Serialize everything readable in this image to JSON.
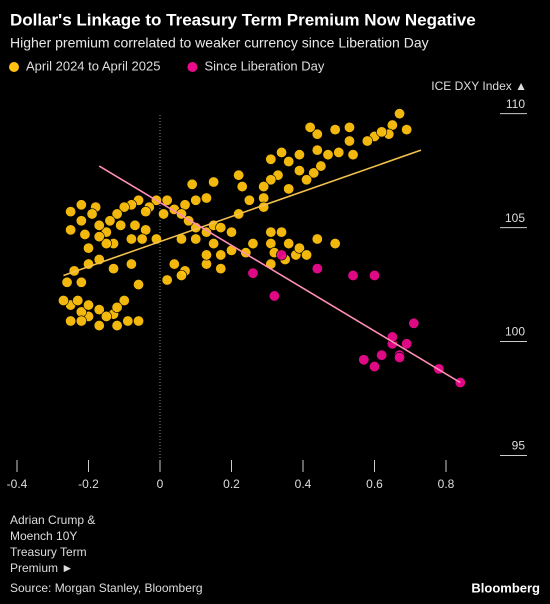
{
  "chart_data": {
    "type": "scatter",
    "title": "Dollar's Linkage to Treasury Term Premium Now Negative",
    "subtitle": "Higher premium correlated to weaker currency since Liberation Day",
    "y_axis_label": "ICE DXY Index ▲",
    "x_axis_label": [
      "Adrian Crump &",
      "Moench 10Y",
      "Treasury Term",
      "Premium ►"
    ],
    "source": "Source: Morgan Stanley, Bloomberg",
    "brand": "Bloomberg",
    "xlim": [
      -0.4,
      1.0
    ],
    "ylim": [
      94.8,
      110.6
    ],
    "xticks": [
      -0.4,
      -0.2,
      0,
      0.2,
      0.4,
      0.6,
      0.8
    ],
    "yticks": [
      95,
      100,
      105,
      110
    ],
    "series": [
      {
        "name": "April 2024 to April 2025",
        "color": "#ffc20e",
        "x": [
          0.67,
          0.65,
          0.69,
          0.64,
          0.6,
          0.62,
          0.53,
          0.49,
          0.44,
          0.42,
          0.44,
          0.47,
          0.5,
          0.54,
          0.53,
          0.58,
          0.39,
          0.36,
          0.34,
          0.31,
          0.33,
          0.39,
          0.43,
          0.45,
          0.41,
          0.36,
          0.31,
          0.29,
          0.29,
          0.29,
          0.23,
          0.25,
          0.22,
          0.15,
          0.09,
          0.1,
          0.13,
          0.07,
          0.04,
          0.02,
          0.06,
          0.01,
          -0.01,
          -0.03,
          -0.04,
          -0.06,
          -0.08,
          -0.1,
          -0.12,
          -0.14,
          -0.11,
          -0.07,
          -0.04,
          -0.01,
          -0.05,
          -0.08,
          -0.13,
          -0.15,
          -0.15,
          -0.17,
          -0.18,
          -0.22,
          -0.25,
          -0.22,
          -0.19,
          -0.25,
          -0.21,
          -0.17,
          -0.2,
          -0.17,
          -0.2,
          -0.24,
          -0.26,
          -0.22,
          -0.13,
          -0.08,
          -0.06,
          -0.1,
          -0.13,
          -0.17,
          -0.2,
          -0.22,
          -0.25,
          -0.27,
          -0.25,
          -0.22,
          -0.17,
          -0.12,
          -0.09,
          -0.06,
          -0.23,
          -0.2,
          -0.15,
          -0.12,
          0.02,
          0.04,
          0.07,
          0.06,
          0.13,
          0.13,
          0.15,
          0.17,
          0.2,
          0.24,
          0.26,
          0.31,
          0.32,
          0.36,
          0.38,
          0.39,
          0.41,
          0.44,
          0.49,
          0.35,
          0.31,
          0.17,
          0.06,
          0.1,
          0.13,
          0.1,
          0.08,
          0.15,
          0.17,
          0.2,
          0.22,
          0.31,
          0.34
        ],
        "values": [
          110.0,
          109.5,
          109.3,
          109.1,
          109.0,
          109.2,
          109.4,
          109.3,
          109.1,
          109.4,
          108.4,
          108.2,
          108.3,
          108.2,
          108.8,
          108.8,
          108.2,
          107.9,
          108.3,
          108.0,
          107.3,
          107.5,
          107.4,
          107.7,
          107.1,
          106.7,
          107.1,
          106.8,
          106.3,
          105.9,
          106.8,
          106.2,
          107.3,
          107.0,
          106.9,
          106.2,
          106.3,
          106.0,
          105.8,
          106.2,
          105.6,
          105.6,
          106.2,
          105.9,
          105.7,
          106.2,
          106.0,
          105.9,
          105.6,
          105.3,
          105.1,
          105.1,
          104.9,
          104.5,
          104.5,
          104.5,
          104.3,
          104.3,
          104.8,
          105.1,
          105.9,
          106.0,
          105.7,
          105.3,
          105.6,
          104.9,
          104.7,
          104.6,
          104.1,
          103.6,
          103.4,
          103.1,
          102.6,
          102.6,
          103.2,
          103.4,
          102.5,
          101.8,
          101.2,
          101.4,
          101.1,
          101.3,
          101.6,
          101.8,
          100.9,
          100.9,
          100.7,
          100.7,
          100.9,
          100.9,
          101.8,
          101.6,
          101.1,
          101.5,
          102.7,
          103.4,
          103.1,
          102.9,
          103.4,
          103.8,
          104.3,
          103.8,
          104.0,
          103.9,
          104.3,
          104.3,
          103.9,
          104.3,
          103.8,
          104.1,
          103.8,
          104.5,
          104.3,
          103.6,
          103.4,
          103.2,
          104.5,
          104.5,
          104.8,
          105.0,
          105.3,
          105.1,
          105.0,
          104.8,
          105.6,
          104.8,
          104.8
        ]
      },
      {
        "name": "Since Liberation Day",
        "color": "#ec0a8c",
        "x": [
          0.26,
          0.34,
          0.44,
          0.32,
          0.54,
          0.6,
          0.71,
          0.57,
          0.62,
          0.6,
          0.65,
          0.67,
          0.65,
          0.67,
          0.69,
          0.78,
          0.84
        ],
        "values": [
          103.0,
          103.8,
          103.2,
          102.0,
          102.9,
          102.9,
          100.8,
          99.2,
          99.4,
          98.9,
          99.9,
          99.4,
          100.2,
          99.3,
          99.9,
          98.8,
          98.2
        ]
      }
    ],
    "fit_lines": [
      {
        "color": "#f2c14e",
        "x": [
          -0.27,
          0.73
        ],
        "values": [
          102.9,
          108.4
        ]
      },
      {
        "color": "#ff8db4",
        "x": [
          -0.17,
          0.84
        ],
        "values": [
          107.7,
          98.2
        ]
      }
    ]
  }
}
